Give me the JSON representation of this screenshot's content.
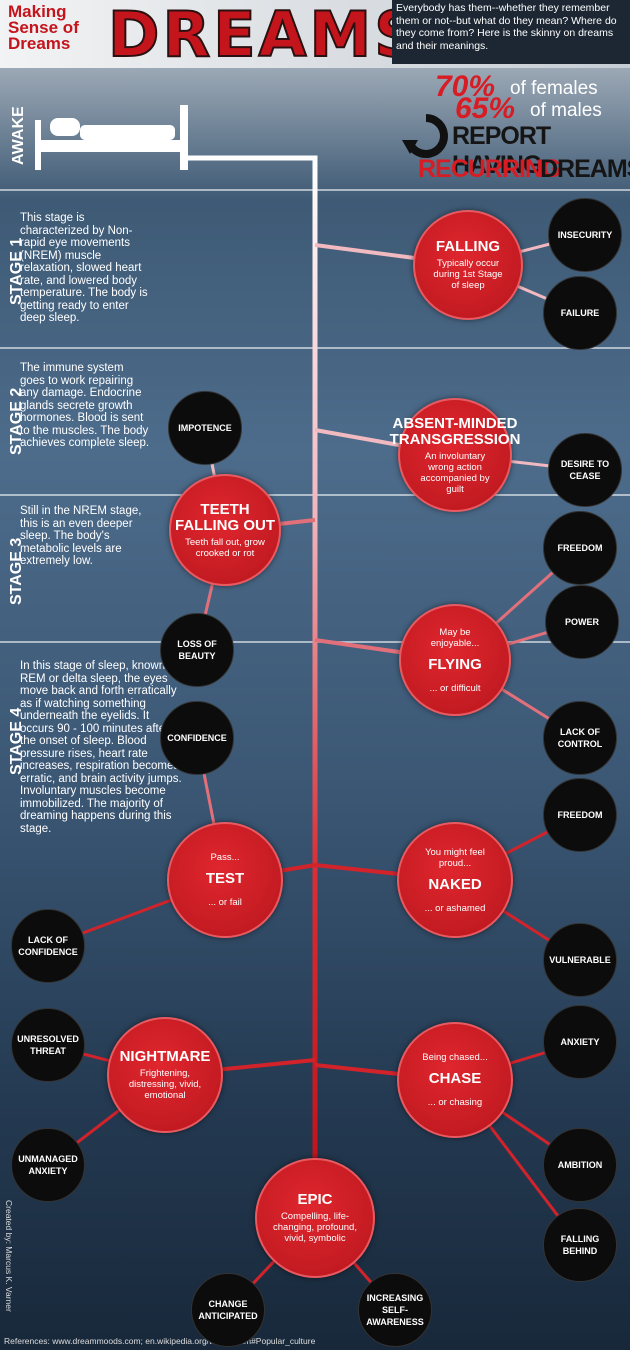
{
  "header": {
    "title": "Making Sense of Dreams",
    "big_title": "DREAMS",
    "intro": "Everybody has them--whether they remember them or not--but what do they mean? Where do they come from? Here is the skinny on dreams and their meanings."
  },
  "stat": {
    "females_pct": "70%",
    "females_label": "of females",
    "males_pct": "65%",
    "males_label": "of males",
    "line1": "REPORT HAVING",
    "line2a": "RECURRING",
    "line2b": "DREAMS"
  },
  "stages": [
    {
      "label": "AWAKE"
    },
    {
      "label": "STAGE 1",
      "text": "This stage is characterized by Non-rapid eye movements (NREM) muscle relaxation, slowed heart rate, and lowered body temperature. The body is getting ready to enter deep sleep."
    },
    {
      "label": "STAGE 2",
      "text": "The immune system goes to work repairing any damage. Endocrine glands secrete growth hormones. Blood is sent to the muscles. The body achieves complete sleep."
    },
    {
      "label": "STAGE 3",
      "text": "Still in the NREM stage, this is an even deeper sleep. The body's metabolic levels are extremely low."
    },
    {
      "label": "STAGE 4",
      "text": "In this stage of sleep, known as REM or delta sleep, the eyes move back and forth erratically as if watching something underneath the eyelids. It occurs 90 - 100 minutes after the onset of sleep. Blood pressure rises, heart rate increases, respiration becomes erratic, and brain activity jumps. Involuntary muscles become immobilized. The majority of dreaming happens during this stage."
    }
  ],
  "dreams": [
    {
      "title": "FALLING",
      "text": "Typically occur during 1st Stage of sleep",
      "branches": [
        "INSECURITY",
        "FAILURE"
      ]
    },
    {
      "title": "ABSENT-MINDED TRANSGRESSION",
      "text": "An involuntary wrong action accompanied by guilt",
      "branches": [
        "DESIRE TO CEASE"
      ]
    },
    {
      "title": "TEETH FALLING OUT",
      "text": "Teeth fall out, grow crooked or rot",
      "branches": [
        "IMPOTENCE",
        "LOSS OF BEAUTY"
      ]
    },
    {
      "title": "FLYING",
      "before": "May be enjoyable...",
      "after": "... or difficult",
      "branches": [
        "FREEDOM",
        "POWER",
        "LACK OF CONTROL"
      ]
    },
    {
      "title": "TEST",
      "before": "Pass...",
      "after": "... or fail",
      "branches": [
        "CONFIDENCE",
        "LACK OF CONFIDENCE"
      ]
    },
    {
      "title": "NAKED",
      "before": "You might feel proud...",
      "after": "... or ashamed",
      "branches": [
        "FREEDOM",
        "VULNERABLE"
      ]
    },
    {
      "title": "NIGHTMARE",
      "text": "Frightening, distressing, vivid, emotional",
      "branches": [
        "UNRESOLVED THREAT",
        "UNMANAGED ANXIETY"
      ]
    },
    {
      "title": "CHASE",
      "before": "Being chased...",
      "after": "... or chasing",
      "branches": [
        "ANXIETY",
        "AMBITION",
        "FALLING BEHIND"
      ]
    },
    {
      "title": "EPIC",
      "text": "Compelling, life-changing, profound, vivid, symbolic",
      "branches": [
        "CHANGE ANTICIPATED",
        "INCREASING SELF-AWARENESS"
      ]
    }
  ],
  "footer": {
    "credit": "Created by: Marcus K. Varner",
    "references": "References: www.dreammoods.com; en.wikipedia.org/wiki/Dream#Popular_culture"
  }
}
